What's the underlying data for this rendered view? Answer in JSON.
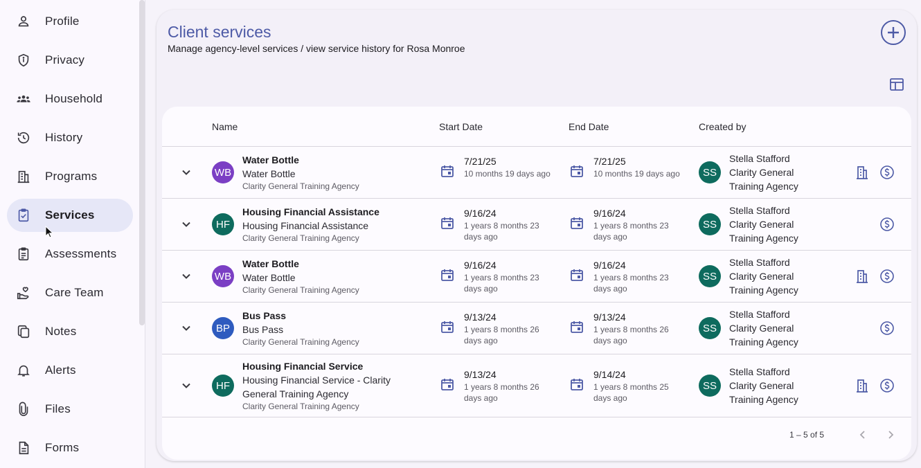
{
  "sidebar": {
    "items": [
      {
        "label": "Profile",
        "icon": "person-icon"
      },
      {
        "label": "Privacy",
        "icon": "shield-icon"
      },
      {
        "label": "Household",
        "icon": "group-icon"
      },
      {
        "label": "History",
        "icon": "history-icon"
      },
      {
        "label": "Programs",
        "icon": "building-icon"
      },
      {
        "label": "Services",
        "icon": "clipboard-check-icon",
        "active": true
      },
      {
        "label": "Assessments",
        "icon": "clipboard-icon"
      },
      {
        "label": "Care Team",
        "icon": "care-hand-icon"
      },
      {
        "label": "Notes",
        "icon": "notes-icon"
      },
      {
        "label": "Alerts",
        "icon": "bell-icon"
      },
      {
        "label": "Files",
        "icon": "paperclip-icon"
      },
      {
        "label": "Forms",
        "icon": "document-icon"
      }
    ]
  },
  "page": {
    "title": "Client services",
    "subtitle": "Manage agency-level services / view service history for Rosa Monroe"
  },
  "table": {
    "headers": {
      "name": "Name",
      "start": "Start Date",
      "end": "End Date",
      "created": "Created by"
    },
    "rows": [
      {
        "initials": "WB",
        "avatar_color": "#7b3fc4",
        "title": "Water Bottle",
        "subtitle": "Water Bottle",
        "agency": "Clarity General Training Agency",
        "start": "7/21/25",
        "start_rel": "10 months 19 days ago",
        "end": "7/21/25",
        "end_rel": "10 months 19 days ago",
        "creator_initials": "SS",
        "creator_name": "Stella Stafford",
        "creator_agency": "Clarity General Training Agency",
        "has_program_icon": true
      },
      {
        "initials": "HF",
        "avatar_color": "#0e6b5e",
        "title": "Housing Financial Assistance",
        "subtitle": "Housing Financial Assistance",
        "agency": "Clarity General Training Agency",
        "start": "9/16/24",
        "start_rel": "1 years 8 months 23 days ago",
        "end": "9/16/24",
        "end_rel": "1 years 8 months 23 days ago",
        "creator_initials": "SS",
        "creator_name": "Stella Stafford",
        "creator_agency": "Clarity General Training Agency",
        "has_program_icon": false
      },
      {
        "initials": "WB",
        "avatar_color": "#7b3fc4",
        "title": "Water Bottle",
        "subtitle": "Water Bottle",
        "agency": "Clarity General Training Agency",
        "start": "9/16/24",
        "start_rel": "1 years 8 months 23 days ago",
        "end": "9/16/24",
        "end_rel": "1 years 8 months 23 days ago",
        "creator_initials": "SS",
        "creator_name": "Stella Stafford",
        "creator_agency": "Clarity General Training Agency",
        "has_program_icon": true
      },
      {
        "initials": "BP",
        "avatar_color": "#2e5bbf",
        "title": "Bus Pass",
        "subtitle": "Bus Pass",
        "agency": "Clarity General Training Agency",
        "start": "9/13/24",
        "start_rel": "1 years 8 months 26 days ago",
        "end": "9/13/24",
        "end_rel": "1 years 8 months 26 days ago",
        "creator_initials": "SS",
        "creator_name": "Stella Stafford",
        "creator_agency": "Clarity General Training Agency",
        "has_program_icon": false
      },
      {
        "initials": "HF",
        "avatar_color": "#0e6b5e",
        "title": "Housing Financial Service",
        "subtitle": "Housing Financial Service - Clarity General Training Agency",
        "agency": "Clarity General Training Agency",
        "start": "9/13/24",
        "start_rel": "1 years 8 months 26 days ago",
        "end": "9/14/24",
        "end_rel": "1 years 8 months 25 days ago",
        "creator_initials": "SS",
        "creator_name": "Stella Stafford",
        "creator_agency": "Clarity General Training Agency",
        "has_program_icon": true
      }
    ],
    "pagination": "1 – 5 of 5"
  },
  "colors": {
    "accent": "#4d5aa6",
    "active_nav": "#e6e7f7"
  }
}
